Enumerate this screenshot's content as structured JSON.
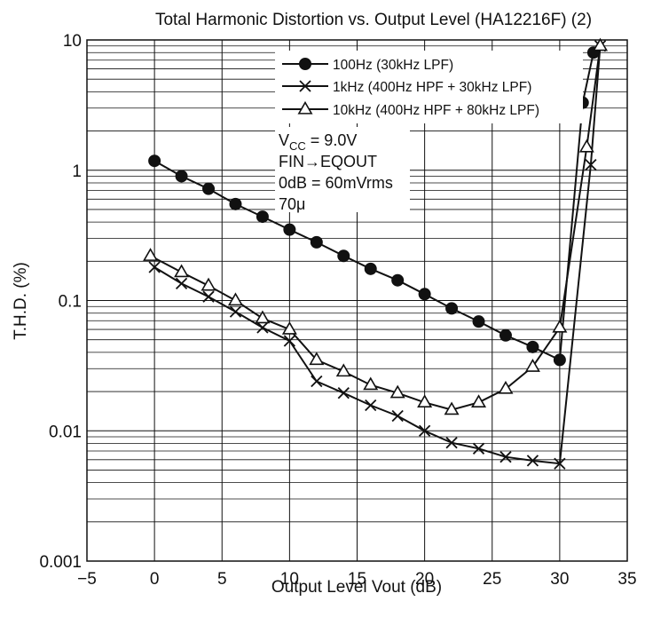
{
  "chart_data": {
    "type": "line",
    "title": "Total Harmonic Distortion vs. Output Level (HA12216F) (2)",
    "xlabel": "Output Level  Vout  (dB)",
    "ylabel": "T.H.D.  (%)",
    "x_scale": "linear",
    "y_scale": "log",
    "xlim": [
      -5,
      35
    ],
    "ylim": [
      0.001,
      10
    ],
    "x_ticks": [
      -5,
      0,
      5,
      10,
      15,
      20,
      25,
      30,
      35
    ],
    "x_tick_labels": [
      "−5",
      "0",
      "5",
      "10",
      "15",
      "20",
      "25",
      "30",
      "35"
    ],
    "y_ticks": [
      0.001,
      0.01,
      0.1,
      1,
      10
    ],
    "y_tick_labels": [
      "0.001",
      "0.01",
      "0.1",
      "1",
      "10"
    ],
    "grid": true,
    "legend_position": "top-right",
    "series": [
      {
        "name": "100Hz (30kHz LPF)",
        "marker": "filled-circle",
        "x": [
          0,
          2,
          4,
          6,
          8,
          10,
          12,
          14,
          16,
          18,
          20,
          22,
          24,
          26,
          28,
          30,
          31.7,
          32.5
        ],
        "y": [
          1.18,
          0.9,
          0.72,
          0.55,
          0.44,
          0.35,
          0.28,
          0.22,
          0.175,
          0.143,
          0.112,
          0.087,
          0.069,
          0.054,
          0.044,
          0.035,
          3.3,
          8.0
        ]
      },
      {
        "name": "1kHz (400Hz HPF + 30kHz LPF)",
        "marker": "x",
        "x": [
          0,
          2,
          4,
          6,
          8,
          10,
          12,
          14,
          16,
          18,
          20,
          22,
          24,
          26,
          28,
          30,
          32.3,
          33
        ],
        "y": [
          0.18,
          0.135,
          0.107,
          0.082,
          0.062,
          0.049,
          0.024,
          0.0195,
          0.0157,
          0.013,
          0.01,
          0.0081,
          0.0073,
          0.0063,
          0.0059,
          0.0056,
          1.1,
          9.0
        ]
      },
      {
        "name": "10kHz (400Hz HPF + 80kHz LPF)",
        "marker": "open-triangle",
        "x": [
          -0.3,
          2,
          4,
          6,
          8,
          10,
          12,
          14,
          16,
          18,
          20,
          22,
          24,
          26,
          28,
          30,
          32,
          33
        ],
        "y": [
          0.22,
          0.165,
          0.13,
          0.1,
          0.073,
          0.06,
          0.035,
          0.0285,
          0.0225,
          0.0195,
          0.0165,
          0.0145,
          0.0165,
          0.021,
          0.031,
          0.062,
          1.5,
          9.0
        ]
      }
    ],
    "annotations": {
      "vcc_main": "V",
      "vcc_sub": "CC",
      "vcc_rest": " = 9.0V",
      "fin_eqout": "FIN→EQOUT",
      "reference": "0dB = 60mVrms",
      "time_constant": "70μ"
    }
  }
}
